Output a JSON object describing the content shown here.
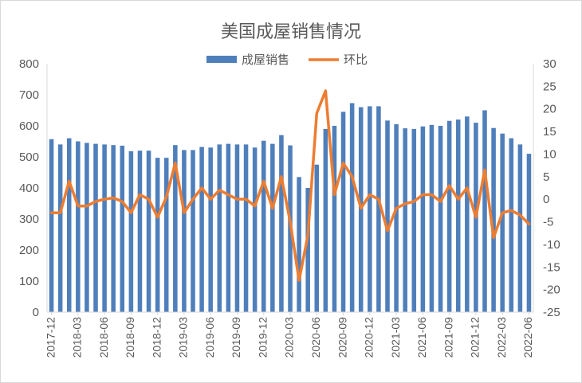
{
  "chart_data": {
    "type": "bar",
    "title": "美国成屋销售情况",
    "legend": {
      "placement": "top-center"
    },
    "colors": {
      "bar": "#4f7fbb",
      "line": "#ed7d31",
      "axis": "#d9d9d9",
      "text": "#595959"
    },
    "y_left": {
      "ylim": [
        0,
        800
      ],
      "ticks": [
        "0",
        "100",
        "200",
        "300",
        "400",
        "500",
        "600",
        "700",
        "800"
      ]
    },
    "y_right": {
      "ylim": [
        -25,
        30
      ],
      "ticks": [
        "-25",
        "-20",
        "-15",
        "-10",
        "-5",
        "0",
        "5",
        "10",
        "15",
        "20",
        "25",
        "30"
      ]
    },
    "x_tick_labels": [
      "2017-12",
      "2018-03",
      "2018-06",
      "2018-09",
      "2018-12",
      "2019-03",
      "2019-06",
      "2019-09",
      "2019-12",
      "2020-03",
      "2020-06",
      "2020-09",
      "2020-12",
      "2021-03",
      "2021-06",
      "2021-09",
      "2021-12",
      "2022-03",
      "2022-06"
    ],
    "categories": [
      "2017-12",
      "2018-01",
      "2018-02",
      "2018-03",
      "2018-04",
      "2018-05",
      "2018-06",
      "2018-07",
      "2018-08",
      "2018-09",
      "2018-10",
      "2018-11",
      "2018-12",
      "2019-01",
      "2019-02",
      "2019-03",
      "2019-04",
      "2019-05",
      "2019-06",
      "2019-07",
      "2019-08",
      "2019-09",
      "2019-10",
      "2019-11",
      "2019-12",
      "2020-01",
      "2020-02",
      "2020-03",
      "2020-04",
      "2020-05",
      "2020-06",
      "2020-07",
      "2020-08",
      "2020-09",
      "2020-10",
      "2020-11",
      "2020-12",
      "2021-01",
      "2021-02",
      "2021-03",
      "2021-04",
      "2021-05",
      "2021-06",
      "2021-07",
      "2021-08",
      "2021-09",
      "2021-10",
      "2021-11",
      "2021-12",
      "2022-01",
      "2022-02",
      "2022-03",
      "2022-04",
      "2022-05",
      "2022-06"
    ],
    "series": [
      {
        "name": "成屋销售",
        "type": "bar",
        "axis": "left",
        "values": [
          557,
          540,
          560,
          550,
          545,
          542,
          540,
          538,
          536,
          518,
          520,
          520,
          497,
          497,
          538,
          522,
          522,
          532,
          530,
          540,
          542,
          540,
          540,
          530,
          552,
          542,
          570,
          537,
          435,
          400,
          475,
          590,
          600,
          645,
          673,
          660,
          663,
          663,
          617,
          605,
          592,
          590,
          598,
          603,
          600,
          616,
          620,
          630,
          610,
          650,
          593,
          575,
          560,
          540,
          510
        ]
      },
      {
        "name": "环比",
        "type": "line",
        "axis": "right",
        "values": [
          -3,
          -3,
          4,
          -1.5,
          -1.5,
          -0.5,
          0,
          0.3,
          -0.5,
          -3,
          1,
          0,
          -4,
          0.5,
          8,
          -3,
          0,
          2.5,
          0,
          2,
          1,
          0,
          0,
          -1.5,
          4,
          -2,
          5,
          -5,
          -18,
          -8,
          19,
          24,
          1,
          8,
          5,
          -2,
          1,
          0,
          -7,
          -2,
          -1,
          -0.5,
          1,
          1,
          -0.5,
          3,
          0,
          2.5,
          -4,
          6.5,
          -8.5,
          -3,
          -2.5,
          -3.5,
          -5.5
        ]
      }
    ]
  }
}
